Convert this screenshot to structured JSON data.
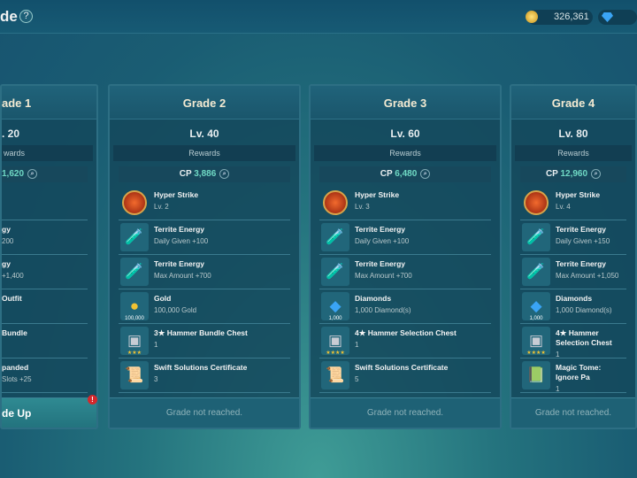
{
  "header": {
    "title": "de",
    "help": "?",
    "gold": "326,361"
  },
  "cards": [
    {
      "title": "ade 1",
      "level": ". 20",
      "rewards": "wards",
      "cp_label": "",
      "cp": "1,620",
      "clipped": true,
      "items": [
        {
          "name": "",
          "sub": "",
          "icon": "none"
        },
        {
          "name": "gy",
          "sub": "200",
          "icon": "none"
        },
        {
          "name": "gy",
          "sub": "+1,400",
          "icon": "none"
        },
        {
          "name": "Outfit",
          "sub": "",
          "icon": "none"
        },
        {
          "name": "Bundle",
          "sub": "",
          "icon": "none"
        },
        {
          "name": "panded",
          "sub": "Slots +25",
          "icon": "none"
        }
      ],
      "footer": "de Up",
      "footer_badge": "!"
    },
    {
      "title": "Grade 2",
      "level": "Lv. 40",
      "rewards": "Rewards",
      "cp_label": "CP",
      "cp": "3,886",
      "items": [
        {
          "name": "Hyper Strike",
          "sub": "Lv. 2",
          "icon": "skill"
        },
        {
          "name": "Territe Energy",
          "sub": "Daily Given +100",
          "icon": "potion"
        },
        {
          "name": "Territe Energy",
          "sub": "Max Amount +700",
          "icon": "potion"
        },
        {
          "name": "Gold",
          "sub": "100,000 Gold",
          "icon": "gold",
          "qty": "100,000"
        },
        {
          "name": "3★ Hammer Bundle Chest",
          "sub": "1",
          "icon": "chest",
          "qty": "★★★"
        },
        {
          "name": "Swift Solutions Certificate",
          "sub": "3",
          "icon": "certificate"
        }
      ],
      "footer": "Grade not reached."
    },
    {
      "title": "Grade 3",
      "level": "Lv. 60",
      "rewards": "Rewards",
      "cp_label": "CP",
      "cp": "6,480",
      "items": [
        {
          "name": "Hyper Strike",
          "sub": "Lv. 3",
          "icon": "skill"
        },
        {
          "name": "Territe Energy",
          "sub": "Daily Given +100",
          "icon": "potion"
        },
        {
          "name": "Territe Energy",
          "sub": "Max Amount +700",
          "icon": "potion"
        },
        {
          "name": "Diamonds",
          "sub": "1,000 Diamond(s)",
          "icon": "diamond",
          "qty": "1,000"
        },
        {
          "name": "4★ Hammer Selection Chest",
          "sub": "1",
          "icon": "chest",
          "qty": "★★★★"
        },
        {
          "name": "Swift Solutions Certificate",
          "sub": "5",
          "icon": "certificate"
        }
      ],
      "footer": "Grade not reached."
    },
    {
      "title": "Grade 4",
      "level": "Lv. 80",
      "rewards": "Rewards",
      "cp_label": "CP",
      "cp": "12,960",
      "items": [
        {
          "name": "Hyper Strike",
          "sub": "Lv. 4",
          "icon": "skill"
        },
        {
          "name": "Territe Energy",
          "sub": "Daily Given +150",
          "icon": "potion"
        },
        {
          "name": "Territe Energy",
          "sub": "Max Amount +1,050",
          "icon": "potion"
        },
        {
          "name": "Diamonds",
          "sub": "1,000 Diamond(s)",
          "icon": "diamond",
          "qty": "1,000"
        },
        {
          "name": "4★ Hammer Selection Chest",
          "sub": "1",
          "icon": "chest",
          "qty": "★★★★"
        },
        {
          "name": "Magic Tome: Ignore Pa",
          "sub": "1",
          "icon": "tome"
        }
      ],
      "footer": "Grade not reached."
    }
  ]
}
